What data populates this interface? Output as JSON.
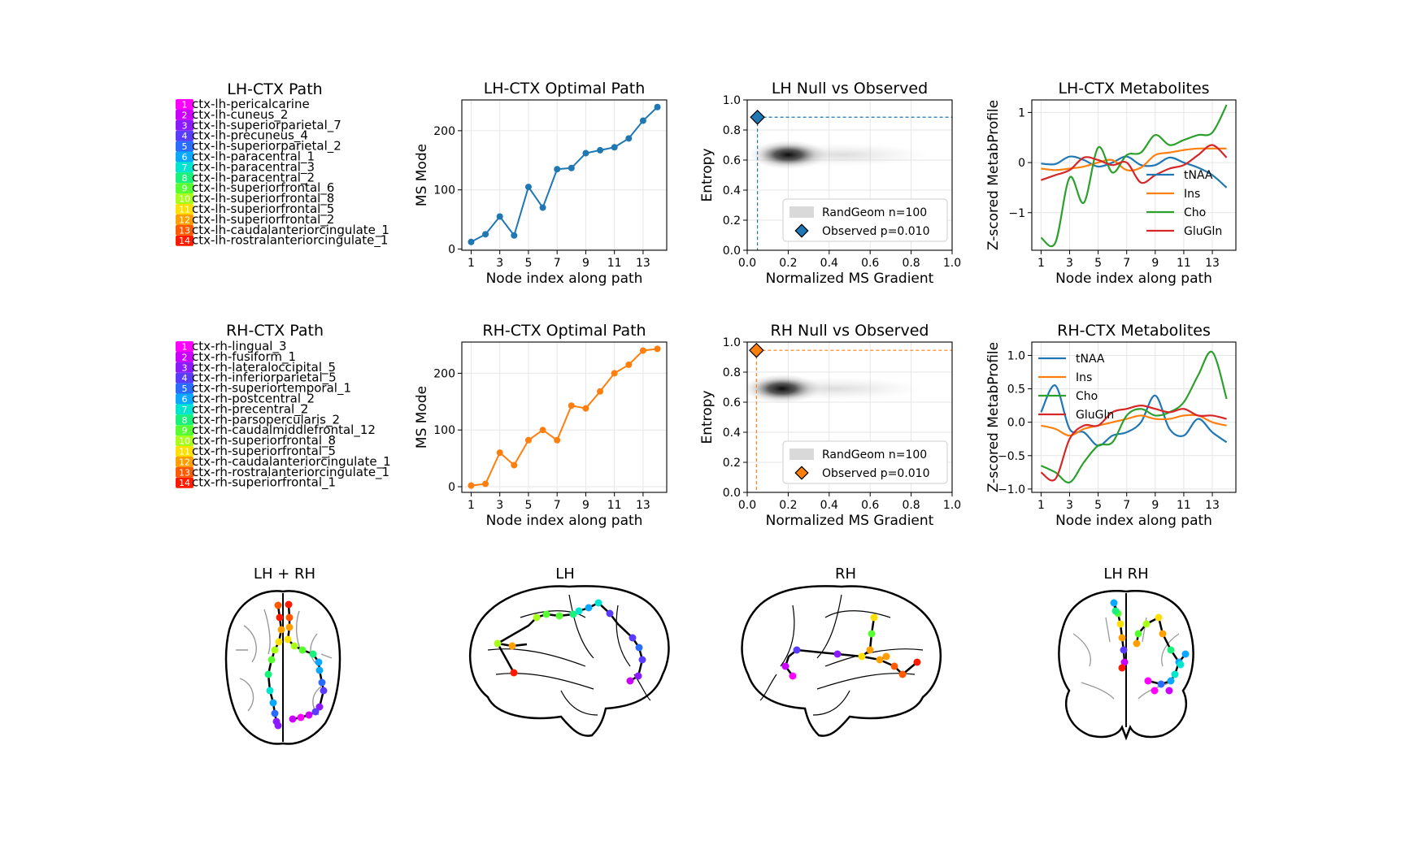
{
  "figure": {
    "row1": {
      "path_title": "LH-CTX Path",
      "path_nodes": [
        "ctx-lh-pericalcarine",
        "ctx-lh-cuneus_2",
        "ctx-lh-superiorparietal_7",
        "ctx-lh-precuneus_4",
        "ctx-lh-superiorparietal_2",
        "ctx-lh-paracentral_1",
        "ctx-lh-paracentral_3",
        "ctx-lh-paracentral_2",
        "ctx-lh-superiorfrontal_6",
        "ctx-lh-superiorfrontal_8",
        "ctx-lh-superiorfrontal_5",
        "ctx-lh-superiorfrontal_2",
        "ctx-lh-caudalanteriorcingulate_1",
        "ctx-lh-rostralanteriorcingulate_1"
      ]
    },
    "row2": {
      "path_title": "RH-CTX Path",
      "path_nodes": [
        "ctx-rh-lingual_3",
        "ctx-rh-fusiform_1",
        "ctx-rh-lateraloccipital_5",
        "ctx-rh-inferiorparietal_5",
        "ctx-rh-superiortemporal_1",
        "ctx-rh-postcentral_2",
        "ctx-rh-precentral_2",
        "ctx-rh-parsopercularis_2",
        "ctx-rh-caudalmiddlefrontal_12",
        "ctx-rh-superiorfrontal_8",
        "ctx-rh-superiorfrontal_5",
        "ctx-rh-caudalanteriorcingulate_1",
        "ctx-rh-rostralanteriorcingulate_1",
        "ctx-rh-superiorfrontal_1"
      ]
    },
    "node_colors": [
      "#ff00ff",
      "#cc00ff",
      "#8c1aff",
      "#5a3cff",
      "#2a6cff",
      "#0aa8ff",
      "#00e5d0",
      "#19f27a",
      "#55ff30",
      "#a8ff18",
      "#ffe000",
      "#ffa000",
      "#ff5a00",
      "#ff1a00"
    ],
    "brain": {
      "titles": [
        "LH + RH",
        "LH",
        "RH",
        "LH  RH"
      ],
      "colors": {
        "outline": "#000000",
        "sulci": "#999999",
        "edge": "#000000"
      }
    }
  },
  "chart_data": [
    {
      "type": "line",
      "title": "LH-CTX Optimal Path",
      "xlabel": "Node index along path",
      "ylabel": "MS Mode",
      "x": [
        1,
        2,
        3,
        4,
        5,
        6,
        7,
        8,
        9,
        10,
        11,
        12,
        13,
        14
      ],
      "values": [
        12,
        25,
        55,
        23,
        105,
        70,
        135,
        137,
        162,
        167,
        172,
        187,
        217,
        240
      ],
      "xticks": [
        "1",
        "3",
        "5",
        "7",
        "9",
        "11",
        "13"
      ],
      "yticks": [
        "0",
        "100",
        "200"
      ],
      "xlim": [
        0.35,
        14.65
      ],
      "ylim": [
        -2,
        252
      ],
      "grid": true,
      "color": "#1f77b4"
    },
    {
      "type": "scatter",
      "title": "LH Null vs Observed",
      "xlabel": "Normalized MS Gradient",
      "ylabel": "Entropy",
      "xlim": [
        0,
        1
      ],
      "ylim": [
        0,
        1
      ],
      "xticks": [
        "0.0",
        "0.2",
        "0.4",
        "0.6",
        "0.8",
        "1.0"
      ],
      "yticks": [
        "0.0",
        "0.2",
        "0.4",
        "0.6",
        "0.8",
        "1.0"
      ],
      "null_center": {
        "x": 0.22,
        "y": 0.635
      },
      "observed": {
        "x": 0.05,
        "y": 0.885
      },
      "legend": [
        "RandGeom n=100",
        "Observed p=0.010"
      ],
      "legend_position": "lower right",
      "grid": true,
      "color": "#1f77b4"
    },
    {
      "type": "line",
      "title": "LH-CTX Metabolites",
      "xlabel": "Node index along path",
      "ylabel": "Z-scored MetabProfile",
      "x": [
        1,
        2,
        3,
        4,
        5,
        6,
        7,
        8,
        9,
        10,
        11,
        12,
        13,
        14
      ],
      "xticks": [
        "1",
        "3",
        "5",
        "7",
        "9",
        "11",
        "13"
      ],
      "yticks": [
        "−1",
        "0",
        "1"
      ],
      "xlim": [
        0.35,
        14.65
      ],
      "ylim": [
        -1.75,
        1.25
      ],
      "legend_position": "right",
      "grid": true,
      "series": [
        {
          "name": "tNAA",
          "color": "#1f77b4",
          "values": [
            -0.02,
            -0.03,
            0.12,
            0.05,
            -0.08,
            0.0,
            0.12,
            -0.05,
            -0.05,
            0.1,
            0.0,
            -0.1,
            -0.25,
            -0.5
          ]
        },
        {
          "name": "Ins",
          "color": "#ff7f0e",
          "values": [
            -0.12,
            -0.15,
            -0.12,
            -0.08,
            0.0,
            0.05,
            -0.15,
            -0.1,
            0.15,
            0.2,
            0.25,
            0.28,
            0.28,
            0.28
          ]
        },
        {
          "name": "Cho",
          "color": "#2ca02c",
          "values": [
            -1.5,
            -1.6,
            -0.3,
            -0.8,
            0.3,
            -0.2,
            0.15,
            0.2,
            0.55,
            0.35,
            0.45,
            0.55,
            0.6,
            1.15
          ]
        },
        {
          "name": "GluGln",
          "color": "#d62728",
          "values": [
            -0.35,
            -0.25,
            -0.15,
            0.1,
            0.05,
            -0.05,
            0.0,
            -0.4,
            -0.25,
            -0.12,
            -0.05,
            0.15,
            0.35,
            0.1
          ]
        }
      ]
    },
    {
      "type": "line",
      "title": "RH-CTX Optimal Path",
      "xlabel": "Node index along path",
      "ylabel": "MS Mode",
      "x": [
        1,
        2,
        3,
        4,
        5,
        6,
        7,
        8,
        9,
        10,
        11,
        12,
        13,
        14
      ],
      "values": [
        2,
        5,
        60,
        38,
        82,
        100,
        82,
        143,
        138,
        168,
        200,
        215,
        240,
        243
      ],
      "xticks": [
        "1",
        "3",
        "5",
        "7",
        "9",
        "11",
        "13"
      ],
      "yticks": [
        "0",
        "100",
        "200"
      ],
      "xlim": [
        0.35,
        14.65
      ],
      "ylim": [
        -10,
        255
      ],
      "grid": true,
      "color": "#ff7f0e"
    },
    {
      "type": "scatter",
      "title": "RH Null vs Observed",
      "xlabel": "Normalized MS Gradient",
      "ylabel": "Entropy",
      "xlim": [
        0,
        1
      ],
      "ylim": [
        0,
        1
      ],
      "xticks": [
        "0.0",
        "0.2",
        "0.4",
        "0.6",
        "0.8",
        "1.0"
      ],
      "yticks": [
        "0.0",
        "0.2",
        "0.4",
        "0.6",
        "0.8",
        "1.0"
      ],
      "null_center": {
        "x": 0.19,
        "y": 0.69
      },
      "observed": {
        "x": 0.045,
        "y": 0.945
      },
      "legend": [
        "RandGeom n=100",
        "Observed p=0.010"
      ],
      "legend_position": "lower right",
      "grid": true,
      "color": "#ff7f0e"
    },
    {
      "type": "line",
      "title": "RH-CTX Metabolites",
      "xlabel": "Node index along path",
      "ylabel": "Z-scored MetabProfile",
      "x": [
        1,
        2,
        3,
        4,
        5,
        6,
        7,
        8,
        9,
        10,
        11,
        12,
        13,
        14
      ],
      "xticks": [
        "1",
        "3",
        "5",
        "7",
        "9",
        "11",
        "13"
      ],
      "yticks": [
        "−1.0",
        "−0.5",
        "0.0",
        "0.5",
        "1.0"
      ],
      "xlim": [
        0.35,
        14.65
      ],
      "ylim": [
        -1.05,
        1.2
      ],
      "legend_position": "upper left",
      "grid": true,
      "series": [
        {
          "name": "tNAA",
          "color": "#1f77b4",
          "values": [
            0.15,
            0.55,
            -0.1,
            -0.15,
            -0.35,
            -0.2,
            -0.15,
            0.0,
            0.4,
            -0.1,
            -0.2,
            0.05,
            -0.15,
            -0.3
          ]
        },
        {
          "name": "Ins",
          "color": "#ff7f0e",
          "values": [
            -0.05,
            -0.1,
            -0.2,
            -0.1,
            -0.05,
            0.0,
            0.05,
            0.1,
            0.05,
            0.05,
            0.1,
            0.1,
            0.0,
            -0.05
          ]
        },
        {
          "name": "Cho",
          "color": "#2ca02c",
          "values": [
            -0.65,
            -0.75,
            -0.9,
            -0.6,
            -0.35,
            -0.3,
            0.1,
            0.2,
            0.1,
            0.15,
            0.3,
            0.7,
            1.05,
            0.35
          ]
        },
        {
          "name": "GluGln",
          "color": "#d62728",
          "values": [
            -0.75,
            -0.85,
            -0.25,
            -0.05,
            -0.05,
            0.15,
            0.2,
            0.25,
            0.2,
            0.15,
            0.2,
            0.1,
            0.1,
            0.05
          ]
        }
      ]
    }
  ]
}
